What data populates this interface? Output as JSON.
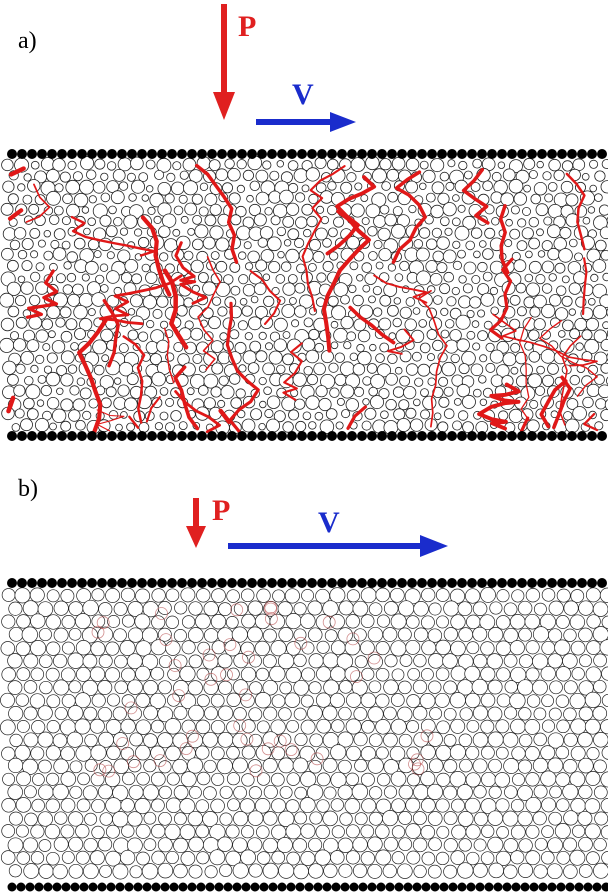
{
  "panels": [
    {
      "label": "a)",
      "force_label": "P",
      "velocity_label": "V"
    },
    {
      "label": "b)",
      "force_label": "P",
      "velocity_label": "V"
    }
  ]
}
